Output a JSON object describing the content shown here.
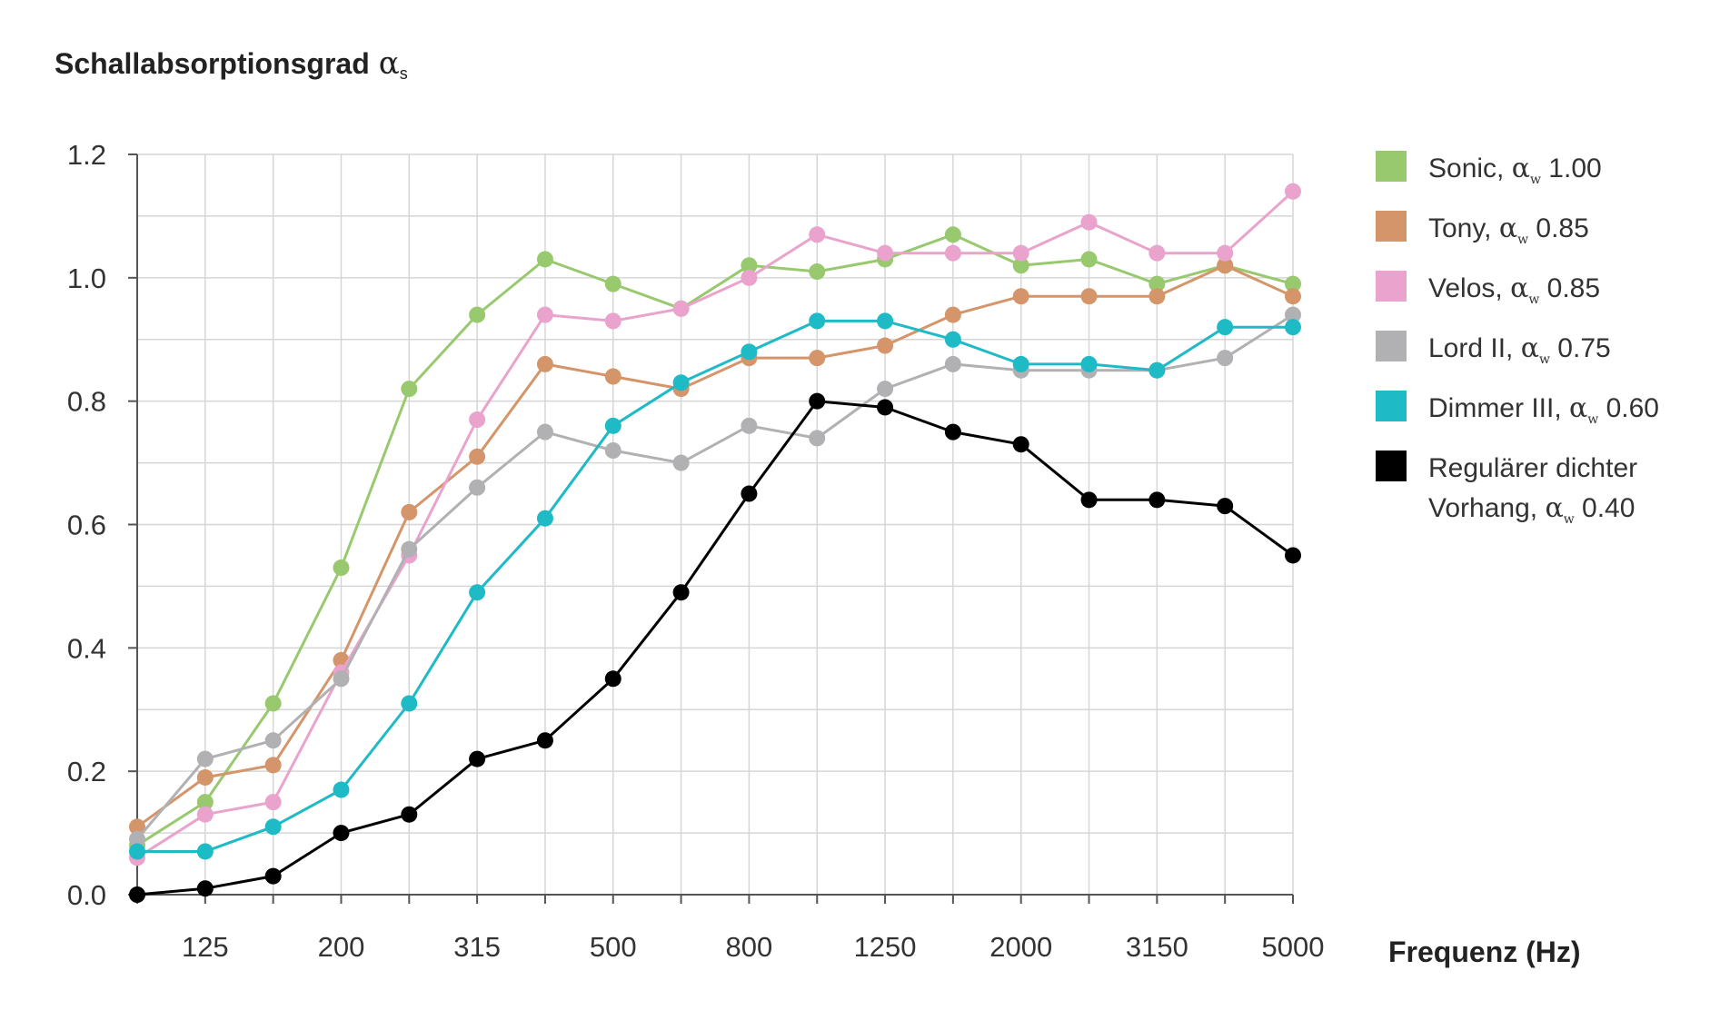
{
  "chart_data": {
    "type": "line",
    "ylabel": "Schallabsorptionsgrad αs",
    "ylabel_text": "Schallabsorptionsgrad",
    "ylabel_symbol": "α",
    "ylabel_sub": "s",
    "xlabel": "Frequenz (Hz)",
    "ylim": [
      0,
      1.2
    ],
    "yticks": [
      "0.0",
      "0.2",
      "0.4",
      "0.6",
      "0.8",
      "1.0",
      "1.2"
    ],
    "x_tick_labels": [
      "125",
      "200",
      "315",
      "500",
      "800",
      "1250",
      "2000",
      "3150",
      "5000"
    ],
    "x": [
      100,
      125,
      160,
      200,
      250,
      315,
      400,
      500,
      630,
      800,
      1000,
      1250,
      1600,
      2000,
      2500,
      3150,
      4000,
      5000
    ],
    "x_scale": "log",
    "grid": true,
    "legend_position": "right",
    "series": [
      {
        "name": "Sonic, αw 1.00",
        "label_prefix": "Sonic,",
        "label_value": "1.00",
        "color": "#98c96f",
        "values": [
          0.08,
          0.15,
          0.31,
          0.53,
          0.82,
          0.94,
          1.03,
          0.99,
          0.95,
          1.02,
          1.01,
          1.03,
          1.07,
          1.02,
          1.03,
          0.99,
          1.02,
          0.99
        ]
      },
      {
        "name": "Tony, αw 0.85",
        "label_prefix": "Tony,",
        "label_value": "0.85",
        "color": "#d4956a",
        "values": [
          0.11,
          0.19,
          0.21,
          0.38,
          0.62,
          0.71,
          0.86,
          0.84,
          0.82,
          0.87,
          0.87,
          0.89,
          0.94,
          0.97,
          0.97,
          0.97,
          1.02,
          0.97
        ]
      },
      {
        "name": "Velos, αw 0.85",
        "label_prefix": "Velos,",
        "label_value": "0.85",
        "color": "#e9a3cc",
        "values": [
          0.06,
          0.13,
          0.15,
          0.36,
          0.55,
          0.77,
          0.94,
          0.93,
          0.95,
          1.0,
          1.07,
          1.04,
          1.04,
          1.04,
          1.09,
          1.04,
          1.04,
          1.14
        ]
      },
      {
        "name": "Lord II, αw 0.75",
        "label_prefix": "Lord II,",
        "label_value": "0.75",
        "color": "#b1b1b4",
        "values": [
          0.09,
          0.22,
          0.25,
          0.35,
          0.56,
          0.66,
          0.75,
          0.72,
          0.7,
          0.76,
          0.74,
          0.82,
          0.86,
          0.85,
          0.85,
          0.85,
          0.87,
          0.94
        ]
      },
      {
        "name": "Dimmer III, αw 0.60",
        "label_prefix": "Dimmer III,",
        "label_value": "0.60",
        "color": "#1ebac6",
        "values": [
          0.07,
          0.07,
          0.11,
          0.17,
          0.31,
          0.49,
          0.61,
          0.76,
          0.83,
          0.88,
          0.93,
          0.93,
          0.9,
          0.86,
          0.86,
          0.85,
          0.92,
          0.92
        ]
      },
      {
        "name": "Regulärer dichter Vorhang, αw 0.40",
        "label_prefix": "Regulärer dichter Vorhang,",
        "label_value": "0.40",
        "color": "#000000",
        "values": [
          0.0,
          0.01,
          0.03,
          0.1,
          0.13,
          0.22,
          0.25,
          0.35,
          0.49,
          0.65,
          0.8,
          0.79,
          0.75,
          0.73,
          0.64,
          0.64,
          0.63,
          0.55
        ]
      }
    ]
  }
}
